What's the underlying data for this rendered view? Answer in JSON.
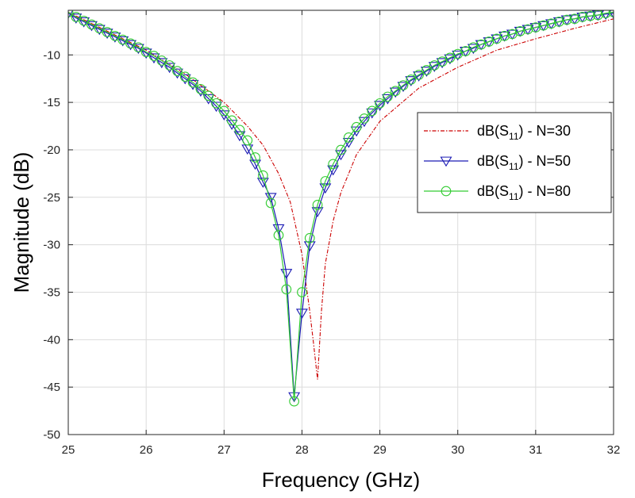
{
  "chart_data": {
    "type": "line",
    "xlabel": "Frequency (GHz)",
    "ylabel": "Magnitude (dB)",
    "xlim": [
      25,
      32
    ],
    "ylim": [
      -50,
      -5.3
    ],
    "xticks": [
      25,
      26,
      27,
      28,
      29,
      30,
      31,
      32
    ],
    "yticks": [
      -50,
      -45,
      -40,
      -35,
      -30,
      -25,
      -20,
      -15,
      -10
    ],
    "grid": true,
    "legend_position": "right",
    "series": [
      {
        "name_main": "dB(S",
        "name_sub": "11",
        "name_tail": ") - N=30",
        "color": "#cc0000",
        "line_style": "dash-dot",
        "marker": "none",
        "x": [
          25.0,
          25.5,
          26.0,
          26.5,
          27.0,
          27.3,
          27.5,
          27.7,
          27.85,
          28.0,
          28.1,
          28.15,
          28.2,
          28.25,
          28.3,
          28.4,
          28.5,
          28.7,
          29.0,
          29.5,
          30.0,
          30.5,
          31.0,
          31.5,
          32.0
        ],
        "y": [
          -5.5,
          -7.5,
          -9.5,
          -12.0,
          -15.0,
          -17.5,
          -19.5,
          -22.5,
          -25.5,
          -31.0,
          -37.0,
          -40.5,
          -44.2,
          -37.0,
          -32.0,
          -27.5,
          -24.5,
          -20.5,
          -17.0,
          -13.5,
          -11.3,
          -9.5,
          -8.3,
          -7.2,
          -6.2
        ]
      },
      {
        "name_main": "dB(S",
        "name_sub": "11",
        "name_tail": ") - N=50",
        "color": "#1a1ab4",
        "line_style": "solid",
        "marker": "triangle-down",
        "x": [
          25.0,
          25.1,
          25.2,
          25.3,
          25.4,
          25.5,
          25.6,
          25.7,
          25.8,
          25.9,
          26.0,
          26.1,
          26.2,
          26.3,
          26.4,
          26.5,
          26.6,
          26.7,
          26.8,
          26.9,
          27.0,
          27.1,
          27.2,
          27.3,
          27.4,
          27.5,
          27.6,
          27.7,
          27.8,
          27.9,
          28.0,
          28.1,
          28.2,
          28.3,
          28.4,
          28.5,
          28.6,
          28.7,
          28.8,
          28.9,
          29.0,
          29.1,
          29.2,
          29.3,
          29.4,
          29.5,
          29.6,
          29.7,
          29.8,
          29.9,
          30.0,
          30.1,
          30.2,
          30.3,
          30.4,
          30.5,
          30.6,
          30.7,
          30.8,
          30.9,
          31.0,
          31.1,
          31.2,
          31.3,
          31.4,
          31.5,
          31.6,
          31.7,
          31.8,
          31.9,
          32.0
        ],
        "y": [
          -5.6,
          -6.1,
          -6.5,
          -6.9,
          -7.3,
          -7.7,
          -8.1,
          -8.5,
          -8.9,
          -9.3,
          -9.8,
          -10.3,
          -10.8,
          -11.3,
          -11.9,
          -12.5,
          -13.1,
          -13.8,
          -14.6,
          -15.4,
          -16.3,
          -17.3,
          -18.5,
          -19.9,
          -21.5,
          -23.4,
          -25.0,
          -28.3,
          -33.0,
          -46.0,
          -37.2,
          -30.1,
          -26.5,
          -24.0,
          -22.1,
          -20.5,
          -19.2,
          -18.0,
          -17.0,
          -16.1,
          -15.3,
          -14.6,
          -13.9,
          -13.3,
          -12.7,
          -12.2,
          -11.7,
          -11.2,
          -10.8,
          -10.4,
          -10.0,
          -9.6,
          -9.3,
          -8.9,
          -8.6,
          -8.3,
          -8.0,
          -7.8,
          -7.5,
          -7.3,
          -7.1,
          -6.9,
          -6.7,
          -6.5,
          -6.3,
          -6.2,
          -6.0,
          -5.9,
          -5.8,
          -5.7,
          -5.6
        ]
      },
      {
        "name_main": "dB(S",
        "name_sub": "11",
        "name_tail": ") - N=80",
        "color": "#33cc33",
        "line_style": "solid",
        "marker": "circle",
        "x": [
          25.0,
          25.1,
          25.2,
          25.3,
          25.4,
          25.5,
          25.6,
          25.7,
          25.8,
          25.9,
          26.0,
          26.1,
          26.2,
          26.3,
          26.4,
          26.5,
          26.6,
          26.7,
          26.8,
          26.9,
          27.0,
          27.1,
          27.2,
          27.3,
          27.4,
          27.5,
          27.6,
          27.7,
          27.8,
          27.9,
          28.0,
          28.1,
          28.2,
          28.3,
          28.4,
          28.5,
          28.6,
          28.7,
          28.8,
          28.9,
          29.0,
          29.1,
          29.2,
          29.3,
          29.4,
          29.5,
          29.6,
          29.7,
          29.8,
          29.9,
          30.0,
          30.1,
          30.2,
          30.3,
          30.4,
          30.5,
          30.6,
          30.7,
          30.8,
          30.9,
          31.0,
          31.1,
          31.2,
          31.3,
          31.4,
          31.5,
          31.6,
          31.7,
          31.8,
          31.9,
          32.0
        ],
        "y": [
          -5.5,
          -6.0,
          -6.4,
          -6.8,
          -7.2,
          -7.6,
          -8.0,
          -8.4,
          -8.8,
          -9.2,
          -9.7,
          -10.1,
          -10.6,
          -11.1,
          -11.7,
          -12.3,
          -12.9,
          -13.6,
          -14.3,
          -15.1,
          -15.9,
          -16.9,
          -17.9,
          -19.0,
          -20.8,
          -22.7,
          -25.6,
          -29.0,
          -34.7,
          -46.5,
          -35.0,
          -29.3,
          -25.8,
          -23.3,
          -21.5,
          -20.0,
          -18.7,
          -17.6,
          -16.7,
          -15.9,
          -15.1,
          -14.4,
          -13.8,
          -13.2,
          -12.6,
          -12.1,
          -11.6,
          -11.1,
          -10.7,
          -10.3,
          -9.9,
          -9.6,
          -9.2,
          -8.9,
          -8.6,
          -8.3,
          -8.0,
          -7.8,
          -7.5,
          -7.3,
          -7.1,
          -6.9,
          -6.7,
          -6.5,
          -6.3,
          -6.2,
          -6.0,
          -5.9,
          -5.8,
          -5.6,
          -5.5
        ]
      }
    ]
  }
}
